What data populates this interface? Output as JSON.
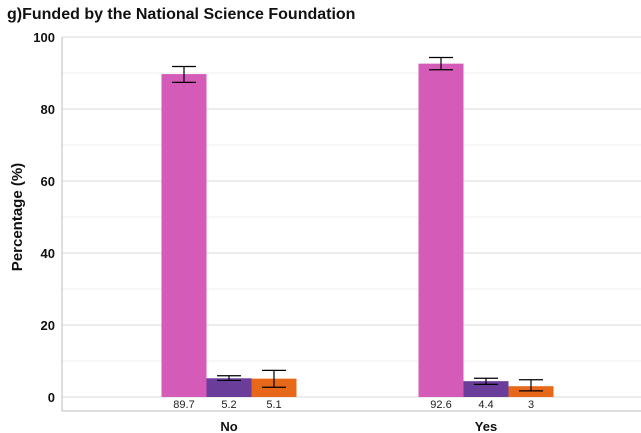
{
  "chart_data": {
    "type": "bar",
    "title": "g)Funded by the National Science Foundation",
    "xlabel": "",
    "ylabel": "Percentage (%)",
    "ylim": [
      0,
      100
    ],
    "yticks": [
      0,
      20,
      40,
      60,
      80,
      100
    ],
    "grid": true,
    "categories": [
      "No",
      "Yes"
    ],
    "series": [
      {
        "color": "#d45cb8",
        "values": [
          89.7,
          92.6
        ],
        "error": [
          [
            87.4,
            91.8
          ],
          [
            90.9,
            94.3
          ]
        ]
      },
      {
        "color": "#6a3d9a",
        "values": [
          5.2,
          4.4
        ],
        "error": [
          [
            4.6,
            5.9
          ],
          [
            3.5,
            5.2
          ]
        ]
      },
      {
        "color": "#e8681a",
        "values": [
          5.1,
          3
        ],
        "error": [
          [
            2.7,
            7.4
          ],
          [
            1.7,
            4.8
          ]
        ]
      }
    ]
  }
}
